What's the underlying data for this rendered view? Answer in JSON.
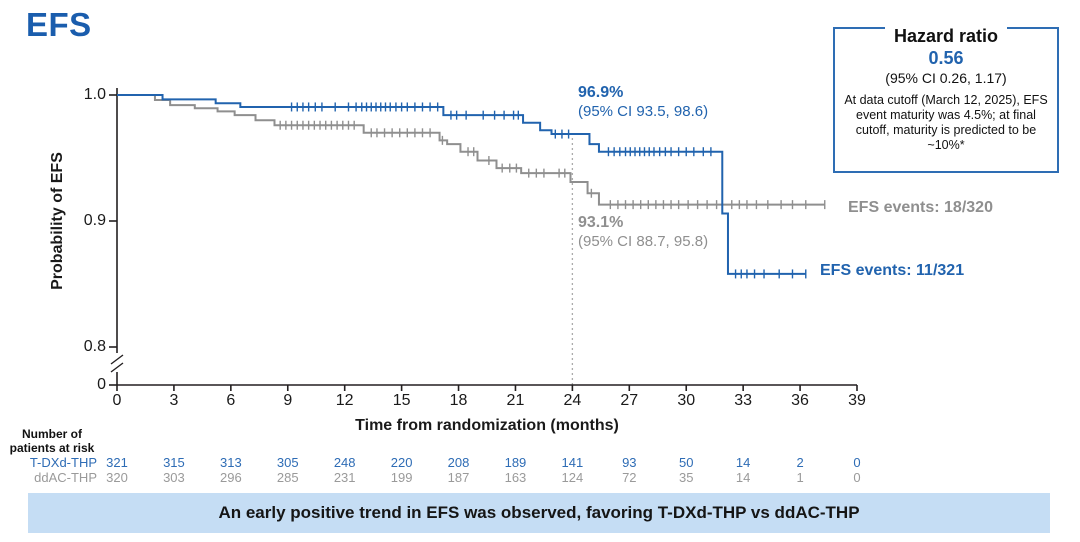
{
  "title": "EFS",
  "colors": {
    "title_blue": "#1a5dad",
    "blue": "#2163ae",
    "gray": "#8f8f8f",
    "atrisk_blue": "#2e6cb5",
    "atrisk_gray": "#9a9a9a",
    "box_border": "#2e6db4",
    "banner_bg": "#c5ddf4",
    "axis": "#231f20",
    "dotted": "#ababab"
  },
  "hazard_box": {
    "title": "Hazard ratio",
    "value": "0.56",
    "ci": "(95% CI 0.26, 1.17)",
    "note": "At data cutoff (March 12, 2025), EFS event maturity was 4.5%; at final cutoff, maturity is predicted to be ~10%*"
  },
  "at_risk": {
    "header_line1": "Number of",
    "header_line2": "patients at risk"
  },
  "banner": "An early positive trend in EFS was observed, favoring T-DXd-THP vs ddAC-THP",
  "chart_data": {
    "type": "line",
    "subtype": "kaplan-meier-step",
    "title": "EFS",
    "xlabel": "Time from randomization (months)",
    "ylabel": "Probability of EFS",
    "xlim": [
      0,
      39
    ],
    "xticks": [
      0,
      3,
      6,
      9,
      12,
      15,
      18,
      21,
      24,
      27,
      30,
      33,
      36,
      39
    ],
    "ylim": [
      0.8,
      1.0
    ],
    "ytick_labels": [
      "1.0",
      "0.9",
      "0.8",
      "0"
    ],
    "y_axis_break": true,
    "grid": false,
    "cutoff_month": 24,
    "series": [
      {
        "name": "T-DXd-THP",
        "color": "#2163ae",
        "events_label": "EFS events: 11/321",
        "landmark_24mo": {
          "value": "96.9%",
          "ci": "(95% CI 93.5, 98.6)"
        },
        "steps": [
          [
            0,
            1.0
          ],
          [
            2.4,
            0.9965
          ],
          [
            5.2,
            0.9935
          ],
          [
            6.5,
            0.9905
          ],
          [
            17.2,
            0.984
          ],
          [
            21.4,
            0.978
          ],
          [
            22.3,
            0.972
          ],
          [
            22.9,
            0.969
          ],
          [
            24.9,
            0.961
          ],
          [
            25.4,
            0.955
          ],
          [
            31.9,
            0.906
          ],
          [
            32.2,
            0.858
          ]
        ],
        "end_month": 36.3,
        "censors": [
          9.2,
          9.5,
          9.8,
          10.1,
          10.45,
          10.8,
          11.5,
          12.2,
          12.6,
          12.9,
          13.15,
          13.4,
          13.65,
          13.9,
          14.15,
          14.4,
          14.7,
          15.0,
          15.3,
          15.7,
          16.1,
          16.5,
          16.9,
          17.6,
          17.9,
          18.4,
          19.3,
          19.9,
          20.4,
          20.9,
          21.15,
          23.1,
          23.45,
          23.8,
          25.9,
          26.2,
          26.5,
          26.8,
          27.05,
          27.3,
          27.55,
          27.8,
          28.05,
          28.3,
          28.6,
          28.9,
          29.2,
          29.6,
          30.0,
          30.4,
          30.9,
          31.3,
          32.6,
          32.9,
          33.2,
          33.6,
          34.1,
          34.9,
          35.6,
          36.3
        ],
        "at_risk": [
          321,
          315,
          313,
          305,
          248,
          220,
          208,
          189,
          141,
          93,
          50,
          14,
          2,
          0
        ]
      },
      {
        "name": "ddAC-THP",
        "color": "#8f8f8f",
        "events_label": "EFS events: 18/320",
        "landmark_24mo": {
          "value": "93.1%",
          "ci": "(95% CI 88.7, 95.8)"
        },
        "steps": [
          [
            0,
            1.0
          ],
          [
            2.0,
            0.996
          ],
          [
            2.8,
            0.992
          ],
          [
            4.1,
            0.9895
          ],
          [
            5.3,
            0.987
          ],
          [
            6.2,
            0.984
          ],
          [
            7.3,
            0.98
          ],
          [
            8.3,
            0.976
          ],
          [
            13.0,
            0.97
          ],
          [
            17.0,
            0.964
          ],
          [
            17.4,
            0.961
          ],
          [
            18.1,
            0.955
          ],
          [
            19.0,
            0.948
          ],
          [
            20.0,
            0.942
          ],
          [
            21.3,
            0.938
          ],
          [
            23.9,
            0.931
          ],
          [
            24.8,
            0.922
          ],
          [
            25.4,
            0.913
          ]
        ],
        "end_month": 37.3,
        "censors": [
          8.6,
          8.9,
          9.2,
          9.5,
          9.8,
          10.1,
          10.4,
          10.7,
          11.0,
          11.3,
          11.6,
          11.9,
          12.2,
          12.5,
          13.4,
          13.7,
          14.1,
          14.5,
          14.9,
          15.3,
          15.7,
          16.1,
          16.5,
          17.15,
          18.5,
          18.8,
          19.6,
          20.3,
          20.7,
          21.05,
          21.7,
          22.1,
          22.5,
          23.3,
          23.6,
          25.0,
          26.0,
          26.4,
          26.8,
          27.2,
          27.6,
          28.0,
          28.4,
          28.8,
          29.2,
          29.6,
          30.1,
          30.6,
          31.1,
          31.6,
          32.4,
          32.8,
          33.2,
          33.7,
          34.3,
          35.0,
          35.6,
          36.3,
          37.3
        ],
        "at_risk": [
          320,
          303,
          296,
          285,
          231,
          199,
          187,
          163,
          124,
          72,
          35,
          14,
          1,
          0
        ]
      }
    ]
  }
}
